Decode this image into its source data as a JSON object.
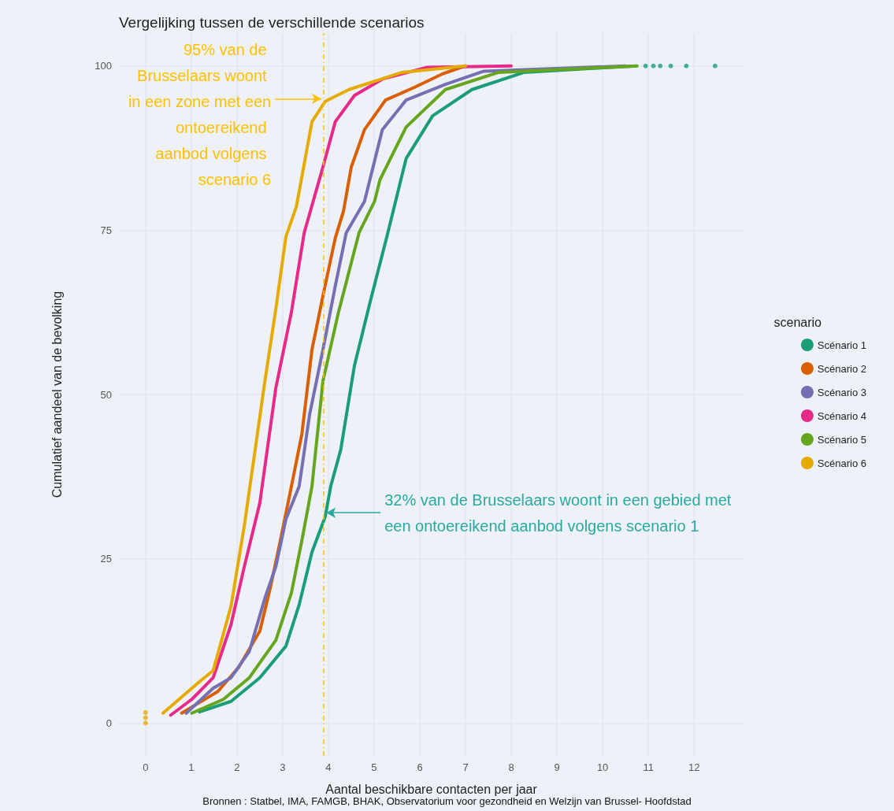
{
  "chart_data": {
    "type": "line",
    "title": "Vergelijking tussen de verschillende scenarios",
    "xlabel": "Aantal beschikbare contacten per jaar",
    "ylabel": "Cumulatief aandeel van de bevolking",
    "legend_title": "scenario",
    "xlim": [
      -0.6,
      13.1
    ],
    "xticks": [
      0,
      1,
      2,
      3,
      4,
      5,
      6,
      7,
      8,
      9,
      10,
      11,
      12
    ],
    "ylim": [
      -5,
      105
    ],
    "yticks": [
      0,
      25,
      50,
      75,
      100
    ],
    "grid": true,
    "legend": "right",
    "marker": "none",
    "series": [
      {
        "name": "Scénario 1",
        "color": "#1b9e77",
        "x": [
          1.18,
          1.87,
          2.5,
          3.07,
          3.36,
          3.64,
          3.93,
          4.05,
          4.27,
          4.57,
          4.91,
          5.3,
          5.7,
          6.28,
          7.14,
          8.27,
          9.72,
          10.75
        ],
        "values": [
          1.7,
          3.3,
          6.9,
          11.7,
          18,
          26,
          31.4,
          36,
          41.6,
          54.4,
          64,
          74.6,
          85.9,
          92.4,
          96.4,
          99,
          99.6,
          100
        ]
      },
      {
        "name": "Scénario 2",
        "color": "#d95f02",
        "x": [
          0.79,
          1.58,
          2.04,
          2.5,
          2.73,
          2.95,
          3.19,
          3.42,
          3.64,
          3.88,
          4.15,
          4.33,
          4.5,
          4.79,
          5.25,
          5.87,
          6.5,
          7.0
        ],
        "values": [
          1.5,
          4.8,
          8.5,
          14,
          20.6,
          27.8,
          36,
          44,
          56.8,
          65,
          73.8,
          77.9,
          84.6,
          90.3,
          94.8,
          96.7,
          98.8,
          100
        ]
      },
      {
        "name": "Scénario 3",
        "color": "#7570b3",
        "x": [
          0.89,
          1.48,
          1.87,
          2.27,
          2.61,
          2.85,
          3.07,
          3.36,
          3.59,
          3.88,
          4.15,
          4.39,
          4.79,
          5.18,
          5.7,
          6.56,
          7.4,
          10.5
        ],
        "values": [
          1.5,
          5.3,
          6.9,
          10.9,
          19,
          23.8,
          31,
          36,
          47,
          56.8,
          66.5,
          74.6,
          79.4,
          90.3,
          94.8,
          97.2,
          99.2,
          100
        ]
      },
      {
        "name": "Scénario 4",
        "color": "#e7298a",
        "x": [
          0.55,
          1.01,
          1.48,
          1.87,
          2.16,
          2.5,
          2.85,
          3.19,
          3.47,
          3.88,
          4.15,
          4.57,
          5.18,
          6.16,
          8.0
        ],
        "values": [
          1.2,
          3.6,
          6.9,
          15,
          23.8,
          33.5,
          51,
          62.5,
          74.6,
          84.6,
          91.5,
          95.5,
          98,
          99.8,
          100
        ]
      },
      {
        "name": "Scénario 5",
        "color": "#66a61e",
        "x": [
          1.01,
          1.7,
          2.27,
          2.85,
          3.19,
          3.42,
          3.64,
          3.88,
          4.22,
          4.67,
          5.01,
          5.13,
          5.7,
          6.56,
          7.71,
          10.75
        ],
        "values": [
          1.5,
          3.6,
          6.9,
          12.6,
          19.8,
          27.8,
          36,
          52,
          62.5,
          74.6,
          79.4,
          82.7,
          90.7,
          96.4,
          99,
          100
        ]
      },
      {
        "name": "Scénario 6",
        "color": "#e6ab02",
        "x": [
          0.38,
          1.13,
          1.48,
          1.87,
          2.16,
          2.61,
          2.85,
          3.07,
          3.3,
          3.64,
          3.93,
          4.45,
          5.6,
          7.0
        ],
        "values": [
          1.5,
          6,
          8,
          17.8,
          30,
          52,
          63,
          74,
          78.6,
          91.5,
          94.6,
          96.4,
          99,
          100
        ]
      },
      {
        "type": "scatter",
        "color": "#1b9e77",
        "x": [
          10.94,
          11.11,
          11.26,
          11.49,
          11.83,
          12.46
        ],
        "values": [
          100,
          100,
          100,
          100,
          100,
          100
        ]
      },
      {
        "type": "scatter",
        "color": "#e6ab02",
        "x": [
          0,
          0,
          0
        ],
        "values": [
          0,
          0.8,
          1.6
        ]
      }
    ],
    "ref_lines": [
      {
        "axis": "x",
        "value": 3.9,
        "color": "#ffc000",
        "line_style": "dashed"
      }
    ],
    "annotations": [
      {
        "text": "95% van de Brusselaars woont in een zone met een ontoereikend aanbod volgens scenario 6",
        "x": 3.9,
        "y": 95
      },
      {
        "text": "32% van de Brusselaars woont in een gebied met een ontoereikend aanbod volgens scenario 1",
        "x": 3.9,
        "y": 32
      },
      "Bronnen : Statbel, IMA, FAMGB, BHAK, Observatorium voor gezondheid en Welzijn van Brussel- Hoofdstad"
    ]
  }
}
